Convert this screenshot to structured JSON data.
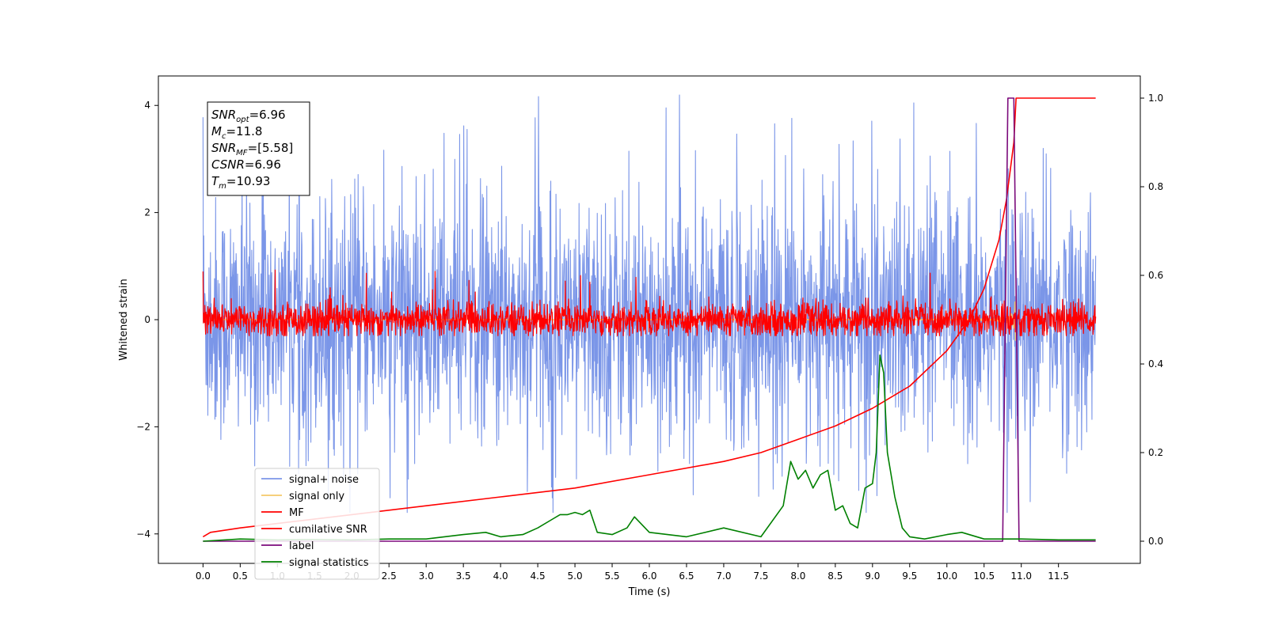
{
  "chart_data": {
    "type": "line",
    "title": "",
    "xlabel": "Time (s)",
    "ylabel": "Whitened strain",
    "xlim": [
      -0.6,
      12.6
    ],
    "ylim": [
      -4.55,
      4.55
    ],
    "y2lim": [
      -0.05,
      1.05
    ],
    "x_ticks": [
      0.0,
      0.5,
      1.0,
      1.5,
      2.0,
      2.5,
      3.0,
      3.5,
      4.0,
      4.5,
      5.0,
      5.5,
      6.0,
      6.5,
      7.0,
      7.5,
      8.0,
      8.5,
      9.0,
      9.5,
      10.0,
      10.5,
      11.0,
      11.5
    ],
    "x_tick_labels": [
      "0.0",
      "0.5",
      "1.0",
      "1.5",
      "2.0",
      "2.5",
      "3.0",
      "3.5",
      "4.0",
      "4.5",
      "5.0",
      "5.5",
      "6.0",
      "6.5",
      "7.0",
      "7.5",
      "8.0",
      "8.5",
      "9.0",
      "9.5",
      "10.0",
      "10.5",
      "11.0",
      "11.5"
    ],
    "y_ticks": [
      -4,
      -2,
      0,
      2,
      4
    ],
    "y_tick_labels": [
      "−4",
      "−2",
      "0",
      "2",
      "4"
    ],
    "y2_ticks": [
      0.0,
      0.2,
      0.4,
      0.6,
      0.8,
      1.0
    ],
    "y2_tick_labels": [
      "0.0",
      "0.2",
      "0.4",
      "0.6",
      "0.8",
      "1.0"
    ],
    "grid": false,
    "legend_position": "bottom-left",
    "series": [
      {
        "name": "signal+ noise",
        "axis": "left",
        "color": "#7b96e8",
        "kind": "noise",
        "x_range": [
          0.0,
          12.0
        ],
        "typical_range": [
          -1.8,
          1.8
        ],
        "extreme_range": [
          -3.6,
          4.2
        ]
      },
      {
        "name": "signal only",
        "axis": "left",
        "color": "#f5c96a",
        "kind": "chirp",
        "x_range": [
          0.0,
          10.93
        ],
        "peak_amplitude": 0.45
      },
      {
        "name": "MF",
        "axis": "left",
        "color": "#ff0000",
        "kind": "noise",
        "x_range": [
          0.0,
          12.0
        ],
        "typical_range": [
          -0.25,
          0.25
        ],
        "extreme_range": [
          -0.3,
          1.0
        ]
      },
      {
        "name": "cumilative SNR",
        "axis": "right",
        "color": "#ff0000",
        "kind": "line",
        "x": [
          0.0,
          0.1,
          0.5,
          1.0,
          2.0,
          3.0,
          4.0,
          5.0,
          6.0,
          7.0,
          7.5,
          8.0,
          8.5,
          9.0,
          9.5,
          10.0,
          10.3,
          10.5,
          10.7,
          10.8,
          10.9,
          10.93,
          11.0,
          12.0
        ],
        "y": [
          0.01,
          0.02,
          0.03,
          0.04,
          0.06,
          0.08,
          0.1,
          0.12,
          0.15,
          0.18,
          0.2,
          0.23,
          0.26,
          0.3,
          0.35,
          0.43,
          0.5,
          0.57,
          0.68,
          0.77,
          0.9,
          1.0,
          1.0,
          1.0
        ]
      },
      {
        "name": "label",
        "axis": "right",
        "color": "#7b0a7b",
        "kind": "line",
        "x": [
          0.0,
          10.75,
          10.82,
          10.9,
          10.97,
          12.0
        ],
        "y": [
          0.0,
          0.0,
          1.0,
          1.0,
          0.0,
          0.0
        ]
      },
      {
        "name": "signal statistics",
        "axis": "right",
        "color": "#008000",
        "kind": "line",
        "x": [
          0.0,
          0.5,
          1.0,
          1.5,
          2.0,
          2.5,
          3.0,
          3.5,
          3.8,
          4.0,
          4.3,
          4.5,
          4.7,
          4.8,
          4.9,
          5.0,
          5.1,
          5.2,
          5.3,
          5.5,
          5.7,
          5.8,
          6.0,
          6.5,
          7.0,
          7.5,
          7.8,
          7.9,
          8.0,
          8.1,
          8.2,
          8.3,
          8.4,
          8.5,
          8.6,
          8.7,
          8.8,
          8.9,
          9.0,
          9.05,
          9.1,
          9.15,
          9.2,
          9.3,
          9.4,
          9.5,
          9.7,
          10.0,
          10.2,
          10.5,
          11.0,
          11.5,
          12.0
        ],
        "y": [
          0.0,
          0.005,
          0.003,
          0.004,
          0.003,
          0.005,
          0.005,
          0.015,
          0.02,
          0.01,
          0.015,
          0.03,
          0.05,
          0.06,
          0.06,
          0.065,
          0.06,
          0.07,
          0.02,
          0.015,
          0.03,
          0.055,
          0.02,
          0.01,
          0.03,
          0.01,
          0.08,
          0.18,
          0.14,
          0.16,
          0.12,
          0.15,
          0.16,
          0.07,
          0.08,
          0.04,
          0.03,
          0.12,
          0.13,
          0.2,
          0.42,
          0.38,
          0.2,
          0.1,
          0.03,
          0.01,
          0.005,
          0.015,
          0.02,
          0.005,
          0.005,
          0.003,
          0.003
        ]
      }
    ],
    "annotation": {
      "lines": [
        {
          "base": "SNR",
          "sub": "opt",
          "rest": "=6.96"
        },
        {
          "base": "M",
          "sub": "c",
          "rest": "=11.8"
        },
        {
          "base": "SNR",
          "sub": "MF",
          "rest": "=[5.58]"
        },
        {
          "base": "CSNR",
          "sub": "",
          "rest": "=6.96"
        },
        {
          "base": "T",
          "sub": "m",
          "rest": "=10.93"
        }
      ]
    }
  }
}
